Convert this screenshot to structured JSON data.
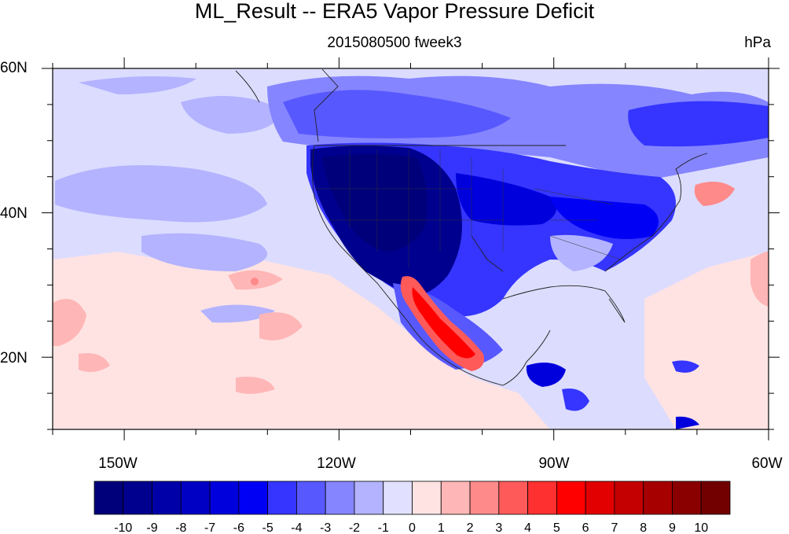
{
  "title": "ML_Result -- ERA5 Vapor Pressure Deficit",
  "subtitle": "2015080500 fweek3",
  "units": "hPa",
  "lat_labels": [
    "60N",
    "40N",
    "20N"
  ],
  "lon_labels": [
    "150W",
    "120W",
    "90W",
    "60W"
  ],
  "colorbar": {
    "labels": [
      "-10",
      "-9",
      "-8",
      "-7",
      "-6",
      "-5",
      "-4",
      "-3",
      "-2",
      "-1",
      "0",
      "1",
      "2",
      "3",
      "4",
      "5",
      "6",
      "7",
      "8",
      "9",
      "10"
    ],
    "colors": [
      "#00007a",
      "#00008f",
      "#0000a8",
      "#0000c4",
      "#0000dd",
      "#0000f5",
      "#3535ff",
      "#5858ff",
      "#8585ff",
      "#b3b3ff",
      "#e1e1ff",
      "#ffe3e3",
      "#ffb6b6",
      "#ff8a8a",
      "#ff5a5a",
      "#ff3030",
      "#ff0000",
      "#e20000",
      "#c40000",
      "#a60000",
      "#8a0000",
      "#720000"
    ]
  },
  "map": {
    "ocean_color": "#dcdcff",
    "extent": {
      "lon": [
        -160,
        -60
      ],
      "lat": [
        10,
        60
      ]
    }
  }
}
